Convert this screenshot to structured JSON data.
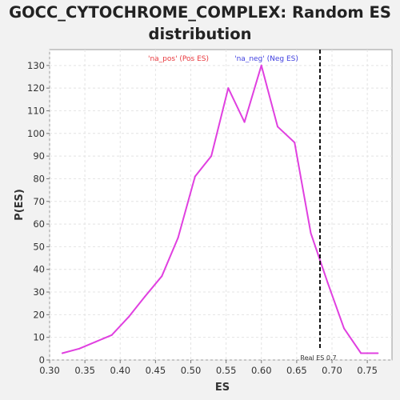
{
  "chart_data": {
    "type": "line",
    "title": [
      "GOCC_CYTOCHROME_COMPLEX: Random ES",
      "distribution"
    ],
    "xlabel": "ES",
    "ylabel": "P(ES)",
    "xlim": [
      0.3,
      0.785
    ],
    "ylim": [
      0,
      137
    ],
    "xticks": [
      "0.30",
      "0.35",
      "0.40",
      "0.45",
      "0.50",
      "0.55",
      "0.60",
      "0.65",
      "0.70",
      "0.75"
    ],
    "xtick_values": [
      0.3,
      0.35,
      0.4,
      0.45,
      0.5,
      0.55,
      0.6,
      0.65,
      0.7,
      0.75
    ],
    "yticks": [
      0,
      10,
      20,
      30,
      40,
      50,
      60,
      70,
      80,
      90,
      100,
      110,
      120,
      130
    ],
    "grid": true,
    "legend": {
      "placement": "top-center",
      "entries": [
        {
          "label": "'na_pos' (Pos ES)",
          "color": "#e8383d"
        },
        {
          "label": "'na_neg' (Neg ES)",
          "color": "#4040e0"
        }
      ]
    },
    "series": [
      {
        "color": "#e040e0",
        "x": [
          0.318,
          0.342,
          0.365,
          0.388,
          0.412,
          0.435,
          0.459,
          0.482,
          0.506,
          0.529,
          0.553,
          0.576,
          0.6,
          0.623,
          0.647,
          0.67,
          0.694,
          0.717,
          0.741,
          0.765
        ],
        "y": [
          3,
          5,
          8,
          11,
          19,
          28,
          37,
          54,
          81,
          90,
          120,
          105,
          130,
          103,
          96,
          56,
          34,
          14,
          3,
          3
        ]
      }
    ],
    "vline": {
      "x": 0.683,
      "label": "Real ES 0.7",
      "style": "dashed",
      "color": "#111111"
    }
  }
}
